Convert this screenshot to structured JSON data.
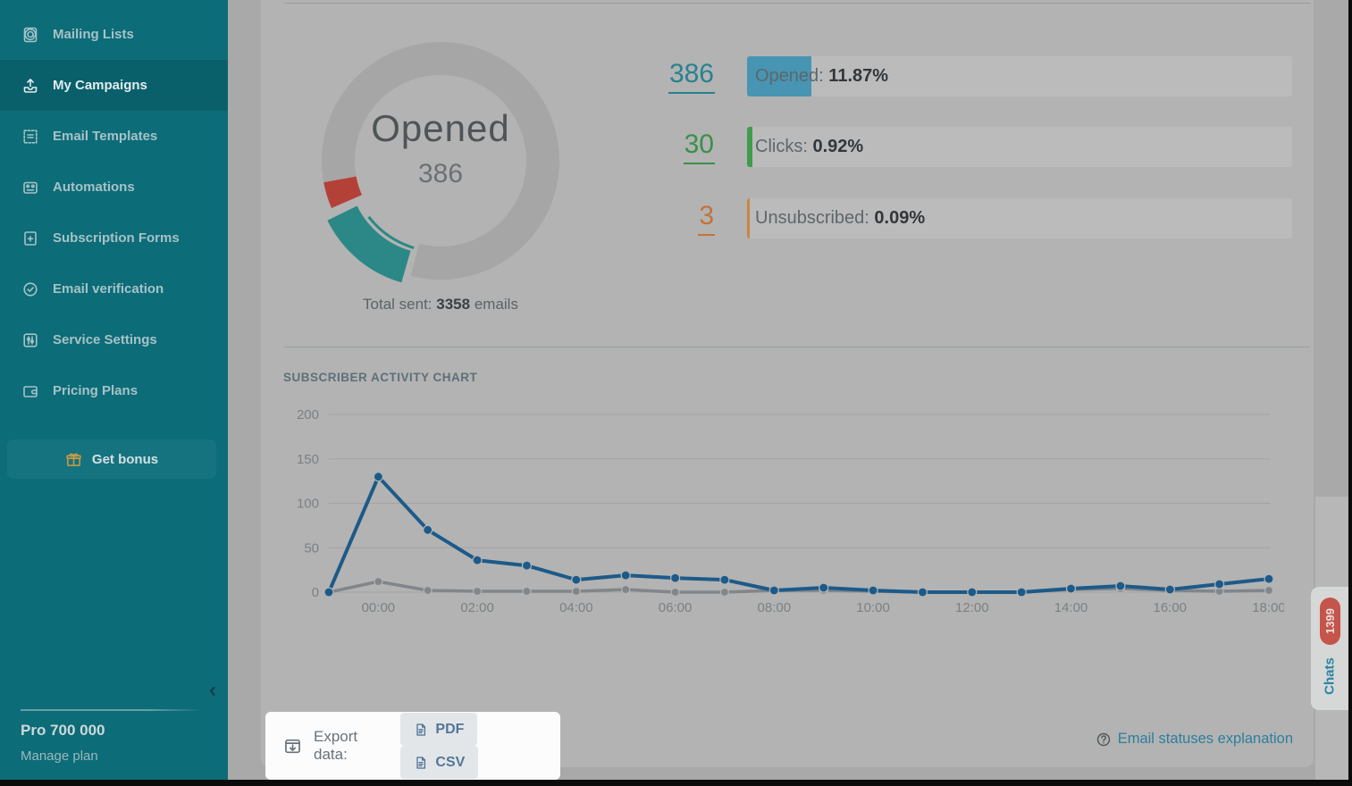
{
  "sidebar": {
    "items": [
      {
        "label": "Mailing Lists",
        "icon": "mailing-lists-icon",
        "active": false
      },
      {
        "label": "My Campaigns",
        "icon": "my-campaigns-icon",
        "active": true
      },
      {
        "label": "Email Templates",
        "icon": "email-templates-icon",
        "active": false
      },
      {
        "label": "Automations",
        "icon": "automations-icon",
        "active": false
      },
      {
        "label": "Subscription Forms",
        "icon": "subscription-forms-icon",
        "active": false
      },
      {
        "label": "Email verification",
        "icon": "email-verification-icon",
        "active": false
      },
      {
        "label": "Service Settings",
        "icon": "service-settings-icon",
        "active": false
      },
      {
        "label": "Pricing Plans",
        "icon": "pricing-plans-icon",
        "active": false
      }
    ],
    "get_bonus_label": "Get bonus",
    "plan_name": "Pro 700 000",
    "manage_plan_label": "Manage plan"
  },
  "overview": {
    "stats": [
      {
        "count": "386",
        "label": "Opened:",
        "percent": "11.87%",
        "count_color": "#27828f",
        "fill_color": "#4795b2",
        "fill_pct": 11.87
      },
      {
        "count": "30",
        "label": "Clicks:",
        "percent": "0.92%",
        "count_color": "#3a9048",
        "fill_color": "#3f9c4c",
        "fill_pct": 0.92
      },
      {
        "count": "3",
        "label": "Unsubscribed:",
        "percent": "0.09%",
        "count_color": "#c2733a",
        "fill_color": "#c9873f",
        "fill_pct": 0.09
      }
    ]
  },
  "chart_data": [
    {
      "type": "donut",
      "center_label": "Opened",
      "center_value": "386",
      "caption_prefix": "Total sent:",
      "caption_value": "3358",
      "caption_suffix": "emails",
      "ring_color": "#a6a6a6",
      "segments": [
        {
          "name": "opened-segment",
          "color": "#2b8886",
          "start_deg": 196,
          "end_deg": 244,
          "exploded": true
        },
        {
          "name": "secondary-segment",
          "color": "#b44138",
          "start_deg": 246.5,
          "end_deg": 259.5,
          "exploded": false
        }
      ],
      "ring_span_deg": [
        259.5,
        554.5
      ],
      "hover_arc": {
        "color": "#2b8886",
        "start_deg": 197,
        "end_deg": 232
      }
    },
    {
      "type": "line",
      "title": "SUBSCRIBER ACTIVITY CHART",
      "categories": [
        "",
        "00:00",
        "",
        "02:00",
        "",
        "04:00",
        "",
        "06:00",
        "",
        "08:00",
        "",
        "10:00",
        "",
        "12:00",
        "",
        "14:00",
        "",
        "16:00",
        "",
        "18:00"
      ],
      "series": [
        {
          "name": "opens-line",
          "color": "#1c5a89",
          "values": [
            0,
            130,
            70,
            36,
            30,
            14,
            19,
            16,
            14,
            2,
            5,
            2,
            0,
            0,
            0,
            4,
            7,
            3,
            9,
            15
          ]
        },
        {
          "name": "clicks-line",
          "color": "#80868b",
          "values": [
            0,
            12,
            2,
            1,
            1,
            1,
            3,
            0,
            0,
            2,
            2,
            1,
            0,
            0,
            0,
            3,
            4,
            2,
            1,
            2
          ]
        }
      ],
      "ylim": [
        0,
        200
      ],
      "yticks": [
        0,
        50,
        100,
        150,
        200
      ],
      "grid": "horizontal",
      "legend": "none"
    }
  ],
  "export": {
    "label": "Export data:",
    "buttons": [
      "PDF",
      "CSV"
    ]
  },
  "footer": {
    "link_label": "Email statuses explanation"
  },
  "chats": {
    "label": "Chats",
    "badge": "1399"
  }
}
